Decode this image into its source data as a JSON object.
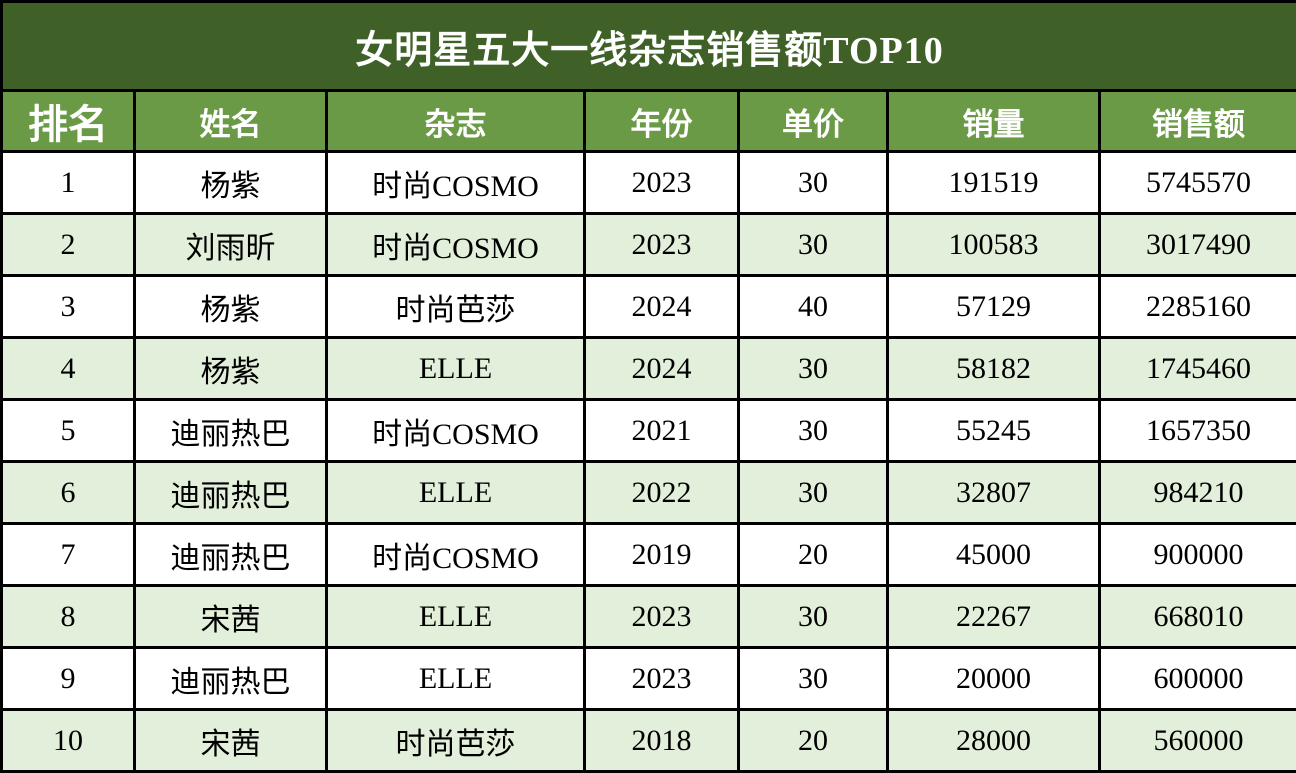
{
  "title": "女明星五大一线杂志销售额TOP10",
  "columns": {
    "rank": "排名",
    "name": "姓名",
    "magazine": "杂志",
    "year": "年份",
    "price": "单价",
    "volume": "销量",
    "sales": "销售额"
  },
  "rows": [
    {
      "rank": "1",
      "name": "杨紫",
      "magazine": "时尚COSMO",
      "year": "2023",
      "price": "30",
      "volume": "191519",
      "sales": "5745570"
    },
    {
      "rank": "2",
      "name": "刘雨昕",
      "magazine": "时尚COSMO",
      "year": "2023",
      "price": "30",
      "volume": "100583",
      "sales": "3017490"
    },
    {
      "rank": "3",
      "name": "杨紫",
      "magazine": "时尚芭莎",
      "year": "2024",
      "price": "40",
      "volume": "57129",
      "sales": "2285160"
    },
    {
      "rank": "4",
      "name": "杨紫",
      "magazine": "ELLE",
      "year": "2024",
      "price": "30",
      "volume": "58182",
      "sales": "1745460"
    },
    {
      "rank": "5",
      "name": "迪丽热巴",
      "magazine": "时尚COSMO",
      "year": "2021",
      "price": "30",
      "volume": "55245",
      "sales": "1657350"
    },
    {
      "rank": "6",
      "name": "迪丽热巴",
      "magazine": "ELLE",
      "year": "2022",
      "price": "30",
      "volume": "32807",
      "sales": "984210"
    },
    {
      "rank": "7",
      "name": "迪丽热巴",
      "magazine": "时尚COSMO",
      "year": "2019",
      "price": "20",
      "volume": "45000",
      "sales": "900000"
    },
    {
      "rank": "8",
      "name": "宋茜",
      "magazine": "ELLE",
      "year": "2023",
      "price": "30",
      "volume": "22267",
      "sales": "668010"
    },
    {
      "rank": "9",
      "name": "迪丽热巴",
      "magazine": "ELLE",
      "year": "2023",
      "price": "30",
      "volume": "20000",
      "sales": "600000"
    },
    {
      "rank": "10",
      "name": "宋茜",
      "magazine": "时尚芭莎",
      "year": "2018",
      "price": "20",
      "volume": "28000",
      "sales": "560000"
    }
  ],
  "colors": {
    "title_background": "#3F6128",
    "header_background": "#6B9A47",
    "alt_row_background": "#E2EFDA",
    "row_background": "#FFFFFF",
    "border": "#000000",
    "title_text": "#FFFFFF",
    "header_text": "#FFFFFF",
    "data_text": "#000000"
  },
  "chart_data": {
    "type": "table",
    "title": "女明星五大一线杂志销售额TOP10",
    "columns": [
      "排名",
      "姓名",
      "杂志",
      "年份",
      "单价",
      "销量",
      "销售额"
    ],
    "rows": [
      [
        1,
        "杨紫",
        "时尚COSMO",
        2023,
        30,
        191519,
        5745570
      ],
      [
        2,
        "刘雨昕",
        "时尚COSMO",
        2023,
        30,
        100583,
        3017490
      ],
      [
        3,
        "杨紫",
        "时尚芭莎",
        2024,
        40,
        57129,
        2285160
      ],
      [
        4,
        "杨紫",
        "ELLE",
        2024,
        30,
        58182,
        1745460
      ],
      [
        5,
        "迪丽热巴",
        "时尚COSMO",
        2021,
        30,
        55245,
        1657350
      ],
      [
        6,
        "迪丽热巴",
        "ELLE",
        2022,
        30,
        32807,
        984210
      ],
      [
        7,
        "迪丽热巴",
        "时尚COSMO",
        2019,
        20,
        45000,
        900000
      ],
      [
        8,
        "宋茜",
        "ELLE",
        2023,
        30,
        22267,
        668010
      ],
      [
        9,
        "迪丽热巴",
        "ELLE",
        2023,
        30,
        20000,
        600000
      ],
      [
        10,
        "宋茜",
        "时尚芭莎",
        2018,
        20,
        28000,
        560000
      ]
    ]
  }
}
